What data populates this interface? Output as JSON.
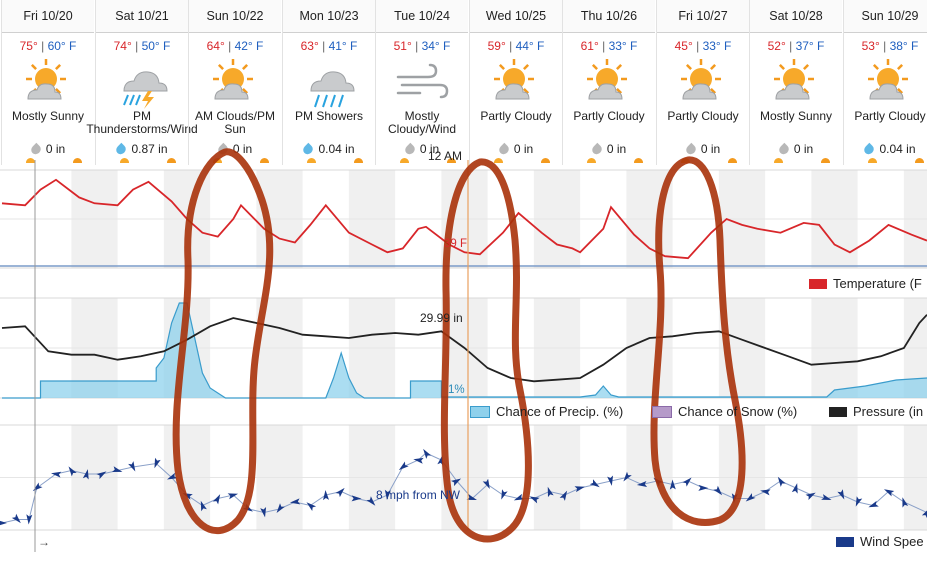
{
  "forecast": [
    {
      "date": "Fri 10/20",
      "hi": "75°",
      "lo": "60° F",
      "cond": "Mostly Sunny",
      "icon": "sun-cloud",
      "precip": "0 in",
      "drop": "gray"
    },
    {
      "date": "Sat 10/21",
      "hi": "74°",
      "lo": "50° F",
      "cond": "PM Thunderstorms/Wind",
      "icon": "thunderstorm",
      "precip": "0.87 in",
      "drop": "blue"
    },
    {
      "date": "Sun 10/22",
      "hi": "64°",
      "lo": "42° F",
      "cond": "AM Clouds/PM Sun",
      "icon": "sun-cloud",
      "precip": "0 in",
      "drop": "gray"
    },
    {
      "date": "Mon 10/23",
      "hi": "63°",
      "lo": "41° F",
      "cond": "PM Showers",
      "icon": "showers",
      "precip": "0.04 in",
      "drop": "blue"
    },
    {
      "date": "Tue 10/24",
      "hi": "51°",
      "lo": "34° F",
      "cond": "Mostly Cloudy/Wind",
      "icon": "wind",
      "precip": "0 in",
      "drop": "gray"
    },
    {
      "date": "Wed 10/25",
      "hi": "59°",
      "lo": "44° F",
      "cond": "Partly Cloudy",
      "icon": "sun-cloud",
      "precip": "0 in",
      "drop": "gray"
    },
    {
      "date": "Thu 10/26",
      "hi": "61°",
      "lo": "33° F",
      "cond": "Partly Cloudy",
      "icon": "sun-cloud",
      "precip": "0 in",
      "drop": "gray"
    },
    {
      "date": "Fri 10/27",
      "hi": "45°",
      "lo": "33° F",
      "cond": "Partly Cloudy",
      "icon": "sun-cloud",
      "precip": "0 in",
      "drop": "gray"
    },
    {
      "date": "Sat 10/28",
      "hi": "52°",
      "lo": "37° F",
      "cond": "Mostly Sunny",
      "icon": "sun-cloud",
      "precip": "0 in",
      "drop": "gray"
    },
    {
      "date": "Sun 10/29",
      "hi": "53°",
      "lo": "38° F",
      "cond": "Partly Cloudy",
      "icon": "sun-cloud",
      "precip": "0.04 in",
      "drop": "blue"
    }
  ],
  "labels": {
    "now_marker": "12 AM",
    "temp_tooltip": "39 F",
    "pressure_tooltip": "29.99 in",
    "precip_tooltip": "1%",
    "wind_tooltip": "8 mph from NW",
    "arrow_glyph": "→",
    "legend_temp": "Temperature (F",
    "legend_precip": "Chance of Precip. (%)",
    "legend_snow": "Chance of Snow (%)",
    "legend_pressure": "Pressure (in",
    "legend_wind": "Wind Spee"
  },
  "colors": {
    "temp": "#d8262a",
    "pressure": "#222222",
    "precip": "#8fd1ec",
    "snow": "#b59ac9",
    "wind": "#1a3a8a",
    "annotation": "#a8320a"
  },
  "chart_data": [
    {
      "type": "line",
      "name": "temperature",
      "x_unit": "hours since Fri 10/20 12 AM",
      "series": [
        {
          "name": "Temperature (F",
          "values": [
            [
              0,
              63
            ],
            [
              6,
              62
            ],
            [
              10,
              70
            ],
            [
              14,
              75
            ],
            [
              20,
              66
            ],
            [
              24,
              63
            ],
            [
              30,
              62
            ],
            [
              34,
              70
            ],
            [
              38,
              74
            ],
            [
              44,
              64
            ],
            [
              48,
              55
            ],
            [
              52,
              48
            ],
            [
              56,
              46
            ],
            [
              60,
              55
            ],
            [
              62,
              62
            ],
            [
              68,
              50
            ],
            [
              72,
              45
            ],
            [
              76,
              43
            ],
            [
              80,
              52
            ],
            [
              84,
              62
            ],
            [
              90,
              48
            ],
            [
              96,
              42
            ],
            [
              100,
              38
            ],
            [
              104,
              40
            ],
            [
              108,
              50
            ],
            [
              110,
              51
            ],
            [
              116,
              42
            ],
            [
              120,
              38
            ],
            [
              124,
              37
            ],
            [
              130,
              48
            ],
            [
              134,
              58
            ],
            [
              140,
              48
            ],
            [
              144,
              42
            ],
            [
              148,
              40
            ],
            [
              150,
              38
            ],
            [
              156,
              50
            ],
            [
              158,
              61
            ],
            [
              164,
              47
            ],
            [
              168,
              40
            ],
            [
              172,
              36
            ],
            [
              178,
              35
            ],
            [
              184,
              48
            ],
            [
              188,
              55
            ],
            [
              192,
              52
            ],
            [
              196,
              50
            ],
            [
              202,
              48
            ],
            [
              208,
              53
            ],
            [
              212,
              52
            ],
            [
              216,
              42
            ],
            [
              220,
              38
            ],
            [
              225,
              44
            ],
            [
              230,
              52
            ],
            [
              236,
              47
            ],
            [
              240,
              44
            ]
          ]
        }
      ],
      "ylim": [
        30,
        80
      ]
    },
    {
      "type": "line",
      "name": "pressure",
      "x_unit": "hours since Fri 10/20 12 AM",
      "series": [
        {
          "name": "Pressure (in",
          "values": [
            [
              0,
              30.02
            ],
            [
              6,
              30.03
            ],
            [
              12,
              29.88
            ],
            [
              18,
              29.86
            ],
            [
              24,
              29.86
            ],
            [
              30,
              29.83
            ],
            [
              36,
              29.85
            ],
            [
              42,
              29.88
            ],
            [
              48,
              29.95
            ],
            [
              54,
              30.03
            ],
            [
              60,
              30.08
            ],
            [
              66,
              30.05
            ],
            [
              72,
              30.02
            ],
            [
              78,
              29.98
            ],
            [
              84,
              29.97
            ],
            [
              90,
              29.96
            ],
            [
              96,
              29.98
            ],
            [
              102,
              29.99
            ],
            [
              108,
              29.98
            ],
            [
              114,
              30.0
            ],
            [
              120,
              29.9
            ],
            [
              126,
              29.78
            ],
            [
              132,
              29.72
            ],
            [
              138,
              29.7
            ],
            [
              144,
              29.71
            ],
            [
              150,
              29.72
            ],
            [
              156,
              29.8
            ],
            [
              162,
              29.9
            ],
            [
              168,
              29.96
            ],
            [
              174,
              29.97
            ],
            [
              180,
              29.99
            ],
            [
              186,
              30.0
            ],
            [
              192,
              29.95
            ],
            [
              198,
              29.9
            ],
            [
              204,
              29.85
            ],
            [
              210,
              29.8
            ],
            [
              216,
              29.81
            ],
            [
              222,
              29.82
            ],
            [
              228,
              29.85
            ],
            [
              234,
              29.9
            ],
            [
              238,
              30.05
            ],
            [
              240,
              30.1
            ]
          ]
        }
      ],
      "ylim": [
        29.6,
        30.2
      ]
    },
    {
      "type": "area",
      "name": "precip",
      "x_unit": "hours since Fri 10/20 12 AM",
      "series": [
        {
          "name": "Chance of Precip. (%)",
          "values": [
            [
              0,
              0
            ],
            [
              10,
              0
            ],
            [
              10,
              17
            ],
            [
              40,
              17
            ],
            [
              40,
              30
            ],
            [
              42,
              40
            ],
            [
              44,
              75
            ],
            [
              46,
              95
            ],
            [
              48,
              95
            ],
            [
              50,
              60
            ],
            [
              52,
              25
            ],
            [
              54,
              10
            ],
            [
              56,
              5
            ],
            [
              58,
              0
            ],
            [
              84,
              0
            ],
            [
              86,
              20
            ],
            [
              88,
              45
            ],
            [
              90,
              20
            ],
            [
              92,
              5
            ],
            [
              94,
              0
            ],
            [
              106,
              0
            ],
            [
              106,
              17
            ],
            [
              114,
              17
            ],
            [
              114,
              1
            ],
            [
              150,
              1
            ],
            [
              154,
              3
            ],
            [
              156,
              12
            ],
            [
              158,
              3
            ],
            [
              160,
              1
            ],
            [
              214,
              1
            ],
            [
              216,
              8
            ],
            [
              224,
              12
            ],
            [
              232,
              18
            ],
            [
              240,
              20
            ]
          ]
        }
      ],
      "ylim": [
        0,
        100
      ]
    },
    {
      "type": "line",
      "name": "wind",
      "x_unit": "hours since Fri 10/20 12 AM",
      "series": [
        {
          "name": "Wind Spee",
          "values": [
            [
              0,
              2
            ],
            [
              4,
              3
            ],
            [
              7,
              3
            ],
            [
              9,
              12
            ],
            [
              14,
              16
            ],
            [
              18,
              17
            ],
            [
              22,
              16
            ],
            [
              26,
              16
            ],
            [
              30,
              17
            ],
            [
              34,
              18
            ],
            [
              40,
              19
            ],
            [
              44,
              15
            ],
            [
              48,
              10
            ],
            [
              52,
              7
            ],
            [
              56,
              9
            ],
            [
              60,
              10
            ],
            [
              64,
              6
            ],
            [
              68,
              5
            ],
            [
              72,
              6
            ],
            [
              76,
              8
            ],
            [
              80,
              7
            ],
            [
              84,
              10
            ],
            [
              88,
              11
            ],
            [
              92,
              9
            ],
            [
              96,
              8
            ],
            [
              100,
              10
            ],
            [
              104,
              18
            ],
            [
              108,
              20
            ],
            [
              110,
              22
            ],
            [
              114,
              20
            ],
            [
              118,
              14
            ],
            [
              122,
              9
            ],
            [
              126,
              13
            ],
            [
              130,
              10
            ],
            [
              134,
              9
            ],
            [
              138,
              9
            ],
            [
              142,
              11
            ],
            [
              146,
              10
            ],
            [
              150,
              12
            ],
            [
              154,
              13
            ],
            [
              158,
              14
            ],
            [
              162,
              15
            ],
            [
              166,
              13
            ],
            [
              170,
              14
            ],
            [
              174,
              13
            ],
            [
              178,
              14
            ],
            [
              182,
              12
            ],
            [
              186,
              11
            ],
            [
              190,
              9
            ],
            [
              194,
              9
            ],
            [
              198,
              11
            ],
            [
              202,
              14
            ],
            [
              206,
              12
            ],
            [
              210,
              10
            ],
            [
              214,
              9
            ],
            [
              218,
              10
            ],
            [
              222,
              8
            ],
            [
              226,
              7
            ],
            [
              230,
              11
            ],
            [
              234,
              8
            ],
            [
              240,
              5
            ]
          ]
        }
      ],
      "ylim": [
        0,
        30
      ]
    }
  ]
}
